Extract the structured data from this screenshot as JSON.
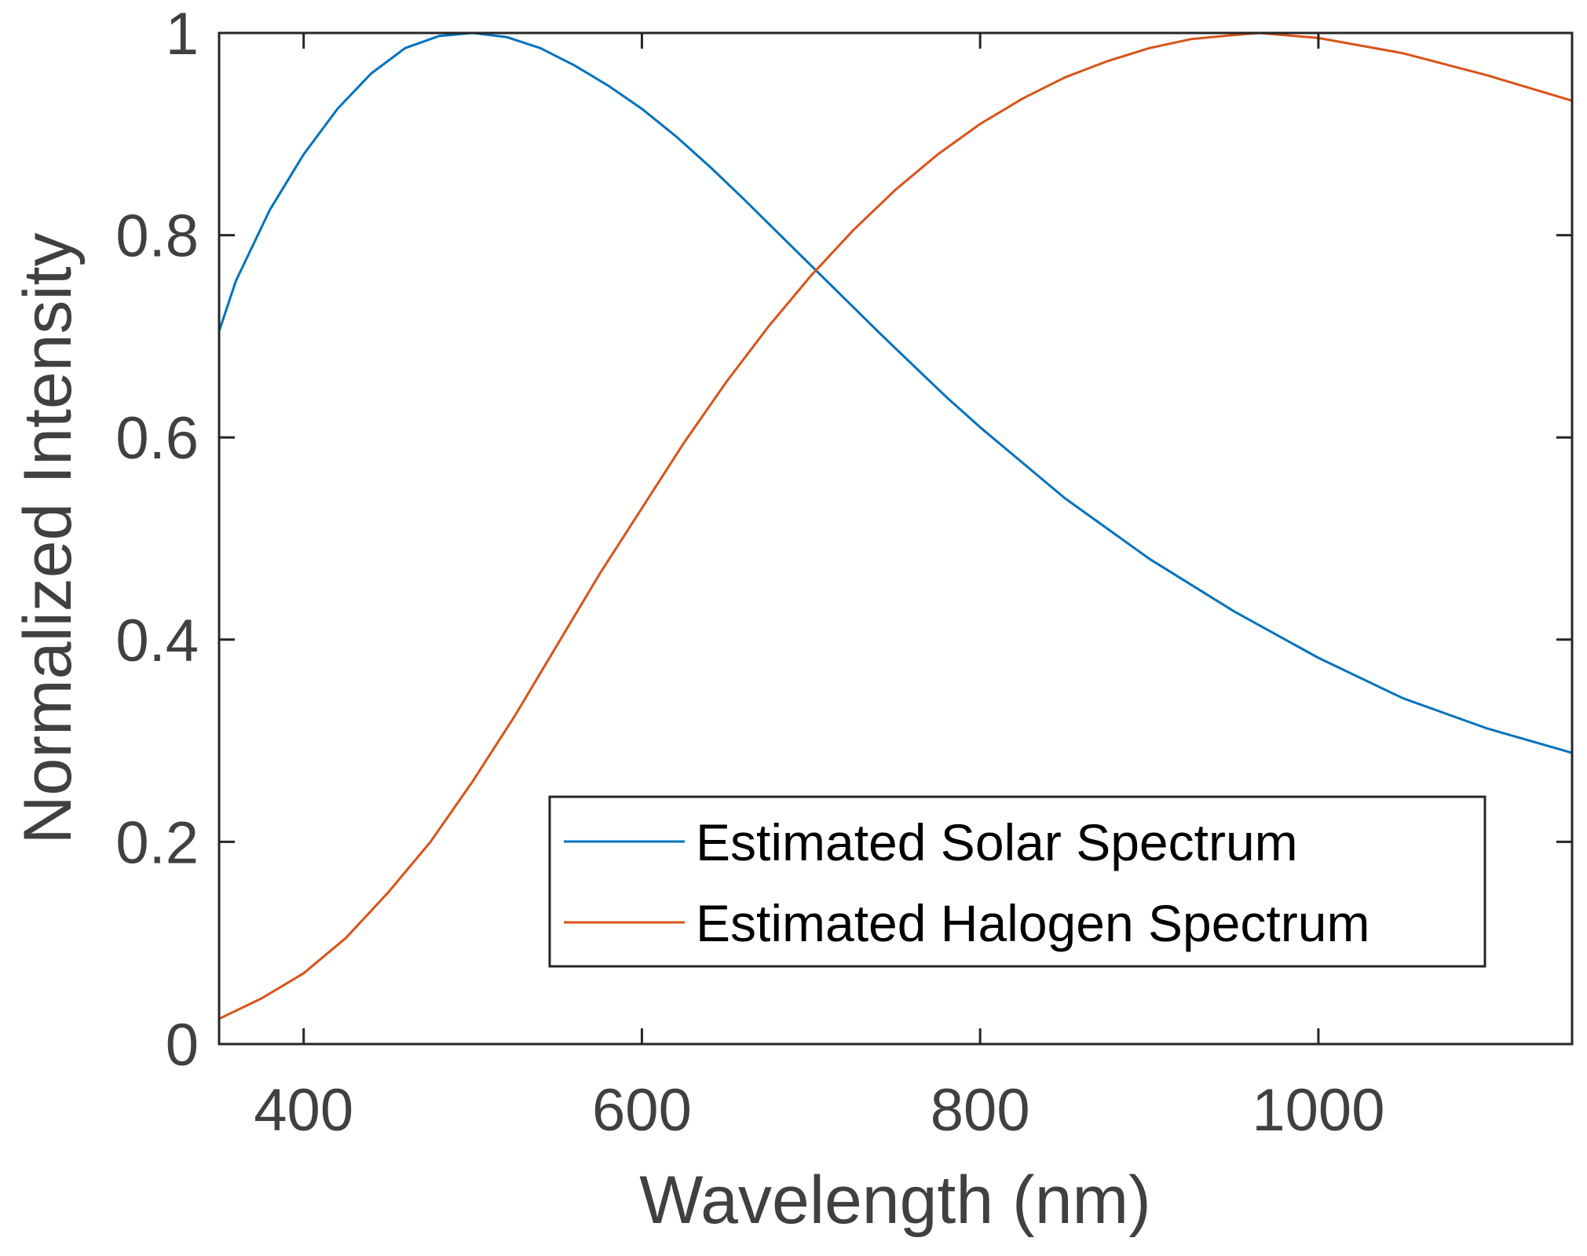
{
  "chart_data": {
    "type": "line",
    "title": "",
    "xlabel": "Wavelength (nm)",
    "ylabel": "Normalized Intensity",
    "xlim": [
      350,
      1150
    ],
    "ylim": [
      0,
      1
    ],
    "xticks": [
      400,
      600,
      800,
      1000
    ],
    "xtick_labels": [
      "400",
      "600",
      "800",
      "1000"
    ],
    "yticks": [
      0,
      0.2,
      0.4,
      0.6,
      0.8,
      1
    ],
    "ytick_labels": [
      "0",
      "0.2",
      "0.4",
      "0.6",
      "0.8",
      "1"
    ],
    "grid": false,
    "legend_position": "bottom-right",
    "series": [
      {
        "name": "Estimated Solar Spectrum",
        "color": "#0072BD",
        "x": [
          350,
          360,
          380,
          400,
          420,
          440,
          460,
          480,
          500,
          520,
          540,
          560,
          580,
          600,
          620,
          640,
          660,
          680,
          700,
          720,
          740,
          760,
          780,
          800,
          850,
          900,
          950,
          1000,
          1050,
          1100,
          1150
        ],
        "y": [
          0.705,
          0.755,
          0.825,
          0.88,
          0.925,
          0.96,
          0.985,
          0.997,
          1.0,
          0.996,
          0.985,
          0.968,
          0.948,
          0.925,
          0.898,
          0.868,
          0.836,
          0.803,
          0.77,
          0.737,
          0.704,
          0.672,
          0.64,
          0.61,
          0.54,
          0.48,
          0.428,
          0.382,
          0.342,
          0.312,
          0.288
        ]
      },
      {
        "name": "Estimated Halogen Spectrum",
        "color": "#D95319",
        "x": [
          350,
          375,
          400,
          425,
          450,
          475,
          500,
          525,
          550,
          575,
          600,
          625,
          650,
          675,
          700,
          725,
          750,
          775,
          800,
          825,
          850,
          875,
          900,
          925,
          950,
          965,
          1000,
          1050,
          1100,
          1150
        ],
        "y": [
          0.025,
          0.045,
          0.07,
          0.105,
          0.15,
          0.2,
          0.26,
          0.325,
          0.395,
          0.465,
          0.53,
          0.595,
          0.655,
          0.71,
          0.76,
          0.805,
          0.845,
          0.88,
          0.91,
          0.935,
          0.956,
          0.972,
          0.985,
          0.994,
          0.998,
          1.0,
          0.995,
          0.98,
          0.958,
          0.933
        ]
      }
    ]
  }
}
